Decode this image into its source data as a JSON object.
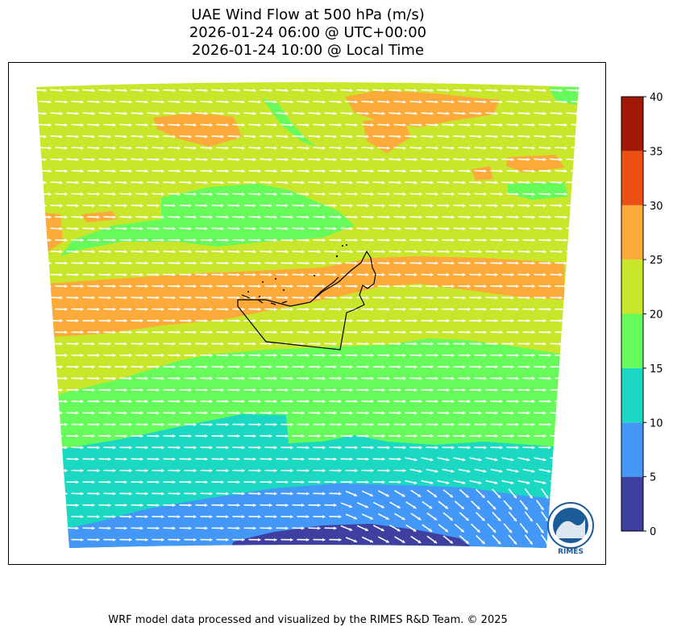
{
  "title": {
    "line1": "UAE Wind Flow at 500 hPa (m/s)",
    "line2": "2026-01-24 06:00 @ UTC+00:00",
    "line3": "2026-01-24 10:00 @ Local Time"
  },
  "colorbar": {
    "ticks": [
      "0",
      "5",
      "10",
      "15",
      "20",
      "25",
      "30",
      "35",
      "40"
    ],
    "bands": [
      {
        "range": [
          0,
          5
        ],
        "color": "#3f3fa0"
      },
      {
        "range": [
          5,
          10
        ],
        "color": "#4397f7"
      },
      {
        "range": [
          10,
          15
        ],
        "color": "#1ad8c2"
      },
      {
        "range": [
          15,
          20
        ],
        "color": "#66fa5a"
      },
      {
        "range": [
          20,
          25
        ],
        "color": "#cae62b"
      },
      {
        "range": [
          25,
          30
        ],
        "color": "#fcaa3a"
      },
      {
        "range": [
          30,
          35
        ],
        "color": "#ed5013"
      },
      {
        "range": [
          35,
          40
        ],
        "color": "#a11905"
      }
    ]
  },
  "logo": {
    "text": "RIMES"
  },
  "footer": "WRF model data processed and visualized by the RIMES R&D Team. © 2025"
}
